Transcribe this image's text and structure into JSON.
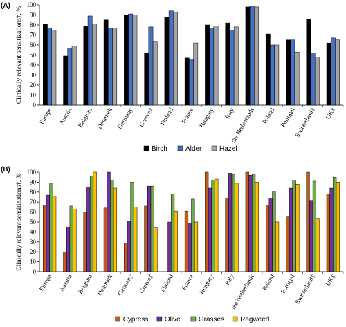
{
  "chart_data": [
    {
      "panel": "(A)",
      "type": "bar",
      "ylabel": "Clinically relevant sensitizations†, %",
      "ylim": [
        0,
        100
      ],
      "yticks": [
        0,
        10,
        20,
        30,
        40,
        50,
        60,
        70,
        80,
        90,
        100
      ],
      "grid": false,
      "legend": "bottom",
      "categories": [
        "Europe",
        "Austria",
        "Belgium",
        "Denmark",
        "Germany",
        "Greece‡",
        "Finland",
        "France",
        "Hungary",
        "Italy",
        "the Netherlands",
        "Poland",
        "Portugal",
        "Switzerland‡",
        "UK‡"
      ],
      "series": [
        {
          "name": "Birch",
          "color": "#000000",
          "values": [
            81,
            49,
            79,
            85,
            90,
            52,
            88,
            47,
            80,
            82,
            98,
            71,
            65,
            86,
            62
          ]
        },
        {
          "name": "Alder",
          "color": "#4472c4",
          "values": [
            77,
            57,
            89,
            77,
            91,
            78,
            94,
            46,
            77,
            75,
            99,
            60,
            65,
            52,
            67
          ]
        },
        {
          "name": "Hazel",
          "color": "#a5a5a5",
          "values": [
            75,
            59,
            81,
            77,
            90,
            63,
            93,
            62,
            79,
            78,
            98,
            60,
            53,
            48,
            65
          ]
        }
      ]
    },
    {
      "panel": "(B)",
      "type": "bar",
      "ylabel": "Clinically relevant sensitizations†, %",
      "ylim": [
        0,
        100
      ],
      "yticks": [
        0,
        10,
        20,
        30,
        40,
        50,
        60,
        70,
        80,
        90,
        100
      ],
      "grid": false,
      "legend": "bottom",
      "categories": [
        "Europe",
        "Austria",
        "Belgium",
        "Denmark",
        "Germany",
        "Greece‡",
        "Finland",
        "France",
        "Hungary",
        "Italy",
        "the Netherlands",
        "Poland",
        "Portugal",
        "Switzerland‡",
        "UK‡"
      ],
      "series": [
        {
          "name": "Cypress",
          "color": "#c55a11",
          "values": [
            67,
            20,
            60,
            64,
            29,
            66,
            null,
            61,
            100,
            74,
            100,
            67,
            55,
            100,
            78
          ]
        },
        {
          "name": "Olive",
          "color": "#7030a0",
          "values": [
            77,
            45,
            85,
            100,
            51,
            86,
            50,
            49,
            84,
            99,
            97,
            74,
            84,
            71,
            84
          ]
        },
        {
          "name": "Grasses",
          "color": "#70ad47",
          "values": [
            89,
            66,
            96,
            92,
            90,
            86,
            78,
            73,
            92,
            98,
            98,
            81,
            92,
            91,
            95
          ]
        },
        {
          "name": "Ragweed",
          "color": "#ffc000",
          "values": [
            76,
            63,
            100,
            84,
            65,
            44,
            61,
            50,
            93,
            89,
            90,
            50,
            88,
            53,
            90
          ]
        }
      ]
    }
  ]
}
